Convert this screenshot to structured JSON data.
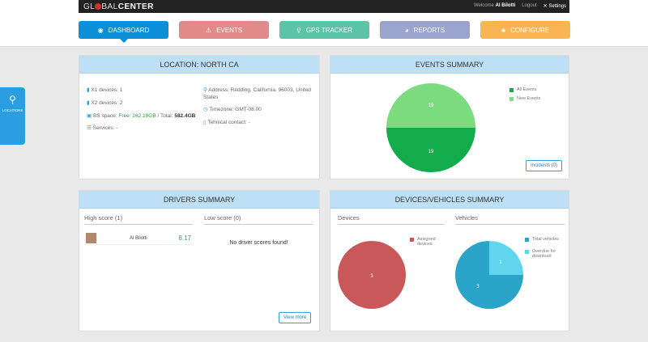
{
  "header": {
    "logo_prefix": "GL",
    "logo_mid": "BAL",
    "logo_bold": "CENTER",
    "welcome": "Welcome",
    "user": "Al Bilotti",
    "logout": "Logout",
    "settings": "Settings"
  },
  "nav": [
    {
      "label": "DASHBOARD",
      "color": "#0b8fd8",
      "icon": "dashboard-icon"
    },
    {
      "label": "EVENTS",
      "color": "#e08a8a",
      "icon": "warning-icon"
    },
    {
      "label": "GPS TRACKER",
      "color": "#5cc4a6",
      "icon": "map-pin-icon"
    },
    {
      "label": "REPORTS",
      "color": "#9ba4cc",
      "icon": "chart-icon"
    },
    {
      "label": "CONFIGURE",
      "color": "#fbb453",
      "icon": "sitemap-icon"
    }
  ],
  "sidebar": {
    "locations": "LOCATIONS"
  },
  "location": {
    "title": "LOCATION: NORTH CA",
    "x1": "X1 devices: 1",
    "x2": "X2 devices: 2",
    "bs_label": "BS space:",
    "bs_free": "Free: 262.19GB",
    "bs_sep": " / Total:",
    "bs_total": "582.4GB",
    "services": "Services: -",
    "address": "Address: Redding, California, 96003, United States",
    "timezone": "Timezone: GMT-08:00",
    "contact": "Tehnical contact: -"
  },
  "events": {
    "title": "EVENTS SUMMARY",
    "legend": [
      "All Events",
      "New Events"
    ],
    "colors": [
      "#13ac4c",
      "#7ddb7f"
    ],
    "values": [
      19,
      19
    ],
    "incidents": "Incidents (0)"
  },
  "drivers": {
    "title": "DRIVERS SUMMARY",
    "high": "High score (1)",
    "low": "Low score (0)",
    "driver_name": "Al Bilotti",
    "driver_score": "8.17",
    "no_low": "No driver scores found!",
    "view_more": "View more"
  },
  "devices": {
    "title": "DEVICES/VEHICLES SUMMARY",
    "devices_label": "Devices",
    "vehicles_label": "Vehicles",
    "devices_legend": "Assigned devices",
    "devices_value": 3,
    "devices_color": "#c9585a",
    "vehicles_legend": [
      "Total vehicles",
      "Overdue for download"
    ],
    "vehicles_values": [
      3,
      1
    ],
    "vehicles_colors": [
      "#2aa4c8",
      "#5fd6ee"
    ]
  }
}
